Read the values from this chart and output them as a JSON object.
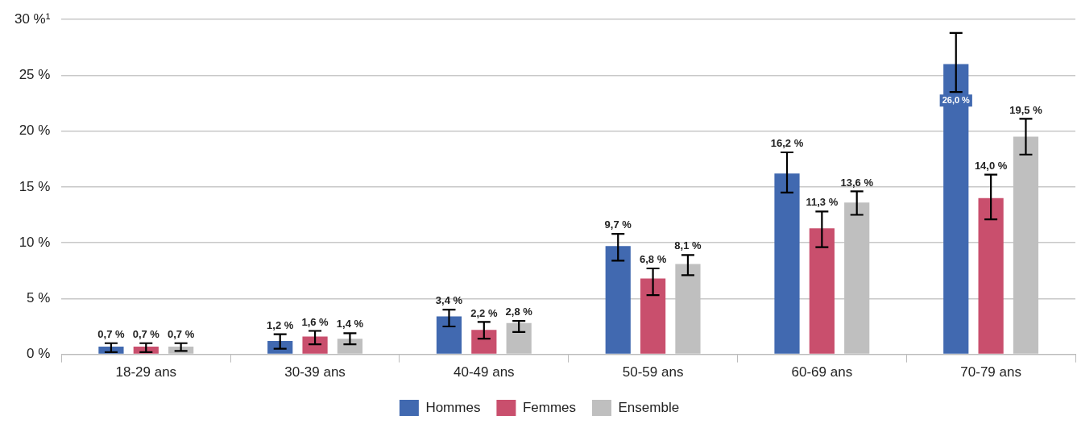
{
  "chart_data": {
    "type": "bar",
    "categories": [
      "18-29 ans",
      "30-39 ans",
      "40-49 ans",
      "50-59 ans",
      "60-69 ans",
      "70-79 ans"
    ],
    "series": [
      {
        "name": "Hommes",
        "color": "#4169b0",
        "values": [
          0.7,
          1.2,
          3.4,
          9.7,
          16.2,
          26.0
        ],
        "errors": [
          [
            0.2,
            1.0
          ],
          [
            0.5,
            1.8
          ],
          [
            2.5,
            4.0
          ],
          [
            8.4,
            10.8
          ],
          [
            14.5,
            18.1
          ],
          [
            23.5,
            28.8
          ]
        ],
        "value_labels": [
          "0,7 %",
          "1,2 %",
          "3,4 %",
          "9,7 %",
          "16,2 %",
          "26,0 %"
        ]
      },
      {
        "name": "Femmes",
        "color": "#c94f6d",
        "values": [
          0.7,
          1.6,
          2.2,
          6.8,
          11.3,
          14.0
        ],
        "errors": [
          [
            0.2,
            1.0
          ],
          [
            0.9,
            2.1
          ],
          [
            1.4,
            2.9
          ],
          [
            5.3,
            7.7
          ],
          [
            9.6,
            12.8
          ],
          [
            12.1,
            16.1
          ]
        ],
        "value_labels": [
          "0,7 %",
          "1,6 %",
          "2,2 %",
          "6,8 %",
          "11,3 %",
          "14,0 %"
        ]
      },
      {
        "name": "Ensemble",
        "color": "#bfbfbf",
        "values": [
          0.7,
          1.4,
          2.8,
          8.1,
          13.6,
          19.5
        ],
        "errors": [
          [
            0.3,
            1.0
          ],
          [
            0.9,
            1.9
          ],
          [
            2.0,
            3.0
          ],
          [
            7.1,
            8.9
          ],
          [
            12.5,
            14.6
          ],
          [
            17.9,
            21.1
          ]
        ],
        "value_labels": [
          "0,7 %",
          "1,4 %",
          "2,8 %",
          "8,1 %",
          "13,6 %",
          "19,5 %"
        ]
      }
    ],
    "ylim": [
      0,
      30
    ],
    "yticks": [
      {
        "value": 0,
        "label": "0 %"
      },
      {
        "value": 5,
        "label": "5 %"
      },
      {
        "value": 10,
        "label": "10 %"
      },
      {
        "value": 15,
        "label": "15 %"
      },
      {
        "value": 20,
        "label": "20 %"
      },
      {
        "value": 25,
        "label": "25 %"
      },
      {
        "value": 30,
        "label": "30 %¹"
      }
    ],
    "grid": "y",
    "legend": "bottom"
  }
}
